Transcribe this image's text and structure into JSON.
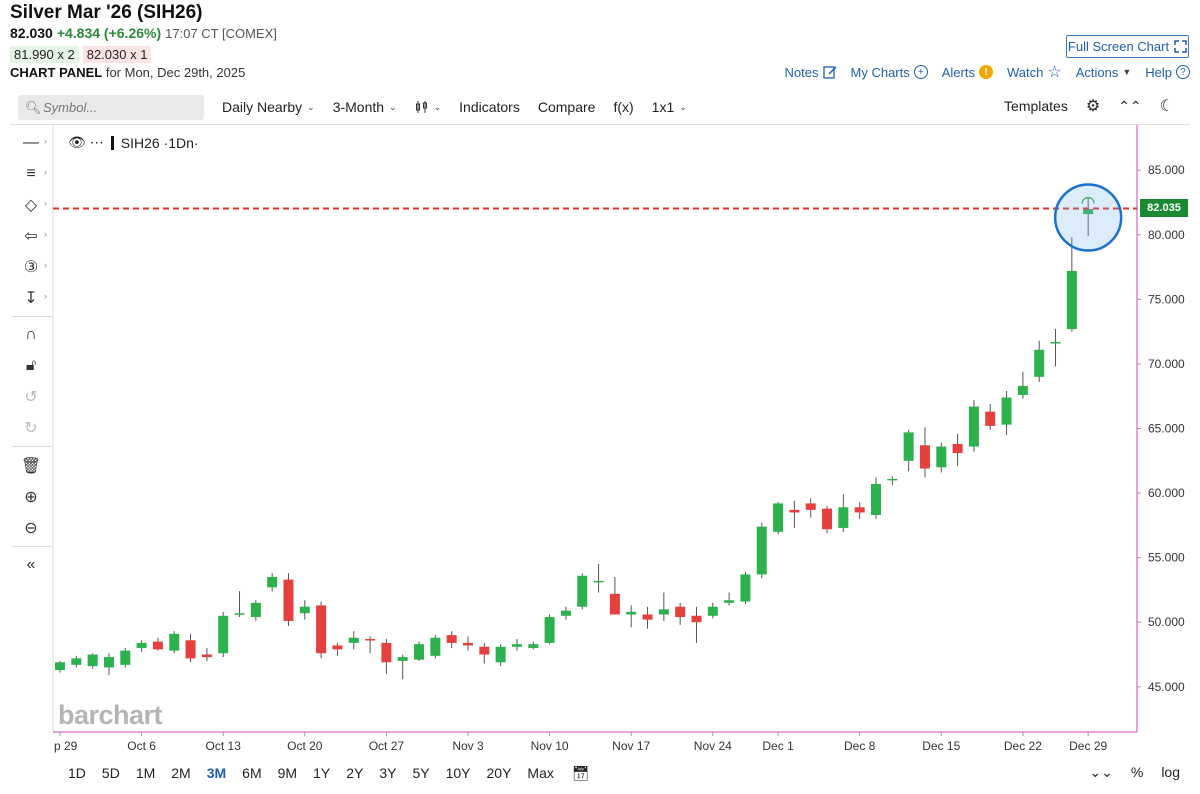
{
  "header": {
    "title": "Silver Mar '26 (SIH26)",
    "last": "82.030",
    "change": "+4.834 (+6.26%)",
    "time": "17:07 CT [COMEX]",
    "bid": "81.990 x 2",
    "ask": "82.030 x 1",
    "panel_label": "CHART PANEL",
    "panel_date": "for Mon, Dec 29th, 2025",
    "fullscreen": "Full Screen Chart"
  },
  "links": {
    "notes": "Notes",
    "mycharts": "My Charts",
    "alerts": "Alerts",
    "watch": "Watch",
    "actions": "Actions",
    "help": "Help"
  },
  "toolbar": {
    "symbol_placeholder": "Symbol...",
    "aggregation": "Daily Nearby",
    "period": "3-Month",
    "indicators": "Indicators",
    "compare": "Compare",
    "fx": "f(x)",
    "layout": "1x1",
    "templates": "Templates"
  },
  "series_label": "SIH26 ·1Dn·",
  "watermark": "barchart",
  "ranges": [
    "1D",
    "5D",
    "1M",
    "2M",
    "3M",
    "6M",
    "9M",
    "1Y",
    "2Y",
    "3Y",
    "5Y",
    "10Y",
    "20Y",
    "Max"
  ],
  "active_range": "3M",
  "bottom_right": {
    "percent": "%",
    "log": "log"
  },
  "colors": {
    "up": "#2bb24c",
    "down": "#e5403d",
    "accent": "#1f5fae",
    "frame": "#cc44bb",
    "lastline": "#e0302a"
  },
  "chart_data": {
    "type": "candlestick",
    "symbol": "SIH26",
    "ylim": [
      41.5,
      88.5
    ],
    "yticks": [
      "85.000",
      "80.000",
      "75.000",
      "70.000",
      "65.000",
      "60.000",
      "55.000",
      "50.000",
      "45.000"
    ],
    "ytick_values": [
      85,
      80,
      75,
      70,
      65,
      60,
      55,
      50,
      45
    ],
    "last_price": "82.035",
    "last_value": 82.035,
    "xticks": [
      {
        "label": "p 29",
        "index": 0
      },
      {
        "label": "Oct 6",
        "index": 5
      },
      {
        "label": "Oct 13",
        "index": 10
      },
      {
        "label": "Oct 20",
        "index": 15
      },
      {
        "label": "Oct 27",
        "index": 20
      },
      {
        "label": "Nov 3",
        "index": 25
      },
      {
        "label": "Nov 10",
        "index": 30
      },
      {
        "label": "Nov 17",
        "index": 35
      },
      {
        "label": "Nov 24",
        "index": 40
      },
      {
        "label": "Dec 1",
        "index": 44
      },
      {
        "label": "Dec 8",
        "index": 49
      },
      {
        "label": "Dec 15",
        "index": 54
      },
      {
        "label": "Dec 22",
        "index": 59
      },
      {
        "label": "Dec 29",
        "index": 63
      }
    ],
    "candles": [
      [
        46.3,
        47.0,
        46.1,
        46.9
      ],
      [
        46.7,
        47.4,
        46.5,
        47.2
      ],
      [
        46.6,
        47.6,
        46.4,
        47.5
      ],
      [
        46.5,
        47.6,
        45.9,
        47.3
      ],
      [
        46.7,
        48.0,
        46.5,
        47.8
      ],
      [
        48.0,
        48.6,
        47.7,
        48.4
      ],
      [
        48.5,
        48.8,
        47.8,
        47.9
      ],
      [
        47.8,
        49.3,
        47.6,
        49.1
      ],
      [
        48.6,
        49.1,
        46.9,
        47.2
      ],
      [
        47.5,
        48.0,
        47.0,
        47.3
      ],
      [
        47.6,
        50.8,
        47.3,
        50.5
      ],
      [
        50.6,
        52.4,
        50.4,
        50.7
      ],
      [
        50.4,
        51.7,
        50.1,
        51.5
      ],
      [
        52.7,
        53.8,
        52.4,
        53.5
      ],
      [
        53.3,
        53.8,
        49.7,
        50.1
      ],
      [
        50.7,
        51.7,
        50.2,
        51.2
      ],
      [
        51.3,
        51.6,
        47.2,
        47.6
      ],
      [
        48.2,
        48.4,
        47.4,
        47.9
      ],
      [
        48.4,
        49.3,
        47.9,
        48.8
      ],
      [
        48.7,
        48.9,
        47.6,
        48.6
      ],
      [
        48.4,
        48.7,
        46.0,
        46.9
      ],
      [
        47.0,
        47.5,
        45.6,
        47.3
      ],
      [
        47.1,
        48.5,
        47.0,
        48.3
      ],
      [
        47.4,
        49.0,
        47.2,
        48.8
      ],
      [
        49.0,
        49.3,
        48.0,
        48.4
      ],
      [
        48.4,
        48.9,
        47.8,
        48.2
      ],
      [
        48.1,
        48.4,
        46.8,
        47.5
      ],
      [
        46.9,
        48.3,
        46.6,
        48.1
      ],
      [
        48.1,
        48.7,
        47.8,
        48.3
      ],
      [
        48.0,
        48.5,
        47.9,
        48.3
      ],
      [
        48.4,
        50.6,
        48.3,
        50.4
      ],
      [
        50.5,
        51.2,
        50.2,
        50.9
      ],
      [
        51.2,
        53.8,
        51.0,
        53.6
      ],
      [
        53.2,
        54.5,
        52.3,
        53.2
      ],
      [
        52.2,
        53.5,
        50.8,
        50.6
      ],
      [
        50.6,
        51.3,
        49.6,
        50.8
      ],
      [
        50.6,
        51.2,
        49.5,
        50.2
      ],
      [
        50.6,
        52.3,
        50.1,
        51.0
      ],
      [
        51.2,
        51.5,
        49.8,
        50.4
      ],
      [
        50.5,
        51.2,
        48.4,
        50.0
      ],
      [
        50.5,
        51.5,
        50.3,
        51.2
      ],
      [
        51.5,
        52.3,
        51.3,
        51.7
      ],
      [
        51.6,
        53.9,
        51.4,
        53.7
      ],
      [
        53.7,
        57.7,
        53.4,
        57.4
      ],
      [
        57.0,
        59.3,
        56.8,
        59.2
      ],
      [
        58.7,
        59.4,
        57.3,
        58.5
      ],
      [
        59.2,
        59.6,
        58.1,
        58.7
      ],
      [
        58.8,
        59.0,
        56.9,
        57.2
      ],
      [
        57.3,
        59.9,
        57.0,
        58.9
      ],
      [
        58.9,
        59.3,
        58.0,
        58.5
      ],
      [
        58.3,
        61.2,
        58.0,
        60.7
      ],
      [
        61.0,
        61.3,
        60.6,
        61.1
      ],
      [
        62.5,
        64.9,
        61.7,
        64.7
      ],
      [
        63.7,
        65.1,
        61.2,
        61.9
      ],
      [
        62.0,
        63.9,
        61.6,
        63.6
      ],
      [
        63.8,
        64.6,
        62.1,
        63.1
      ],
      [
        63.6,
        67.2,
        63.2,
        66.7
      ],
      [
        66.3,
        66.9,
        64.9,
        65.2
      ],
      [
        65.3,
        67.9,
        64.5,
        67.4
      ],
      [
        67.6,
        69.4,
        67.3,
        68.3
      ],
      [
        69.0,
        71.8,
        68.6,
        71.1
      ],
      [
        71.6,
        72.7,
        69.8,
        71.7
      ],
      [
        72.7,
        79.8,
        72.5,
        77.2
      ],
      [
        81.6,
        82.9,
        79.9,
        82.0
      ]
    ]
  }
}
